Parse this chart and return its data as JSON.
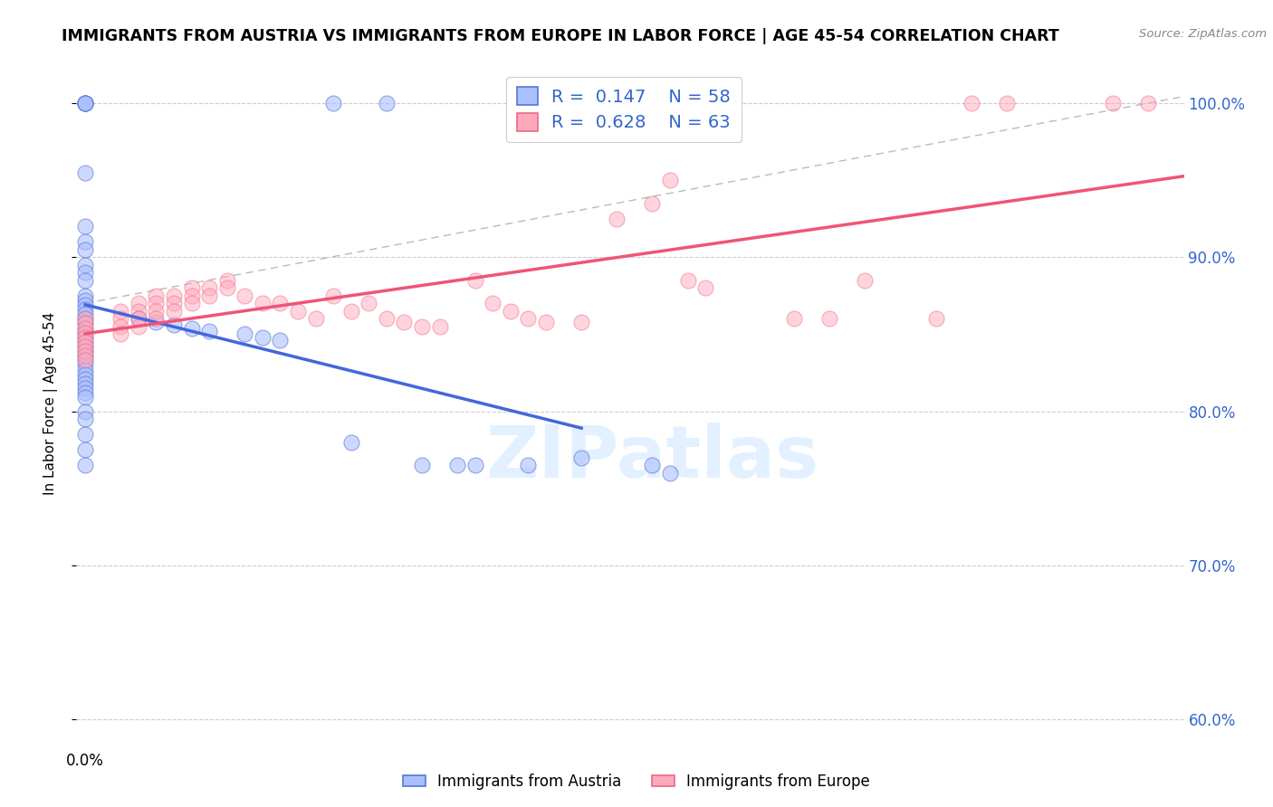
{
  "title": "IMMIGRANTS FROM AUSTRIA VS IMMIGRANTS FROM EUROPE IN LABOR FORCE | AGE 45-54 CORRELATION CHART",
  "source": "Source: ZipAtlas.com",
  "ylabel": "In Labor Force | Age 45-54",
  "xlim": [
    -0.0005,
    0.062
  ],
  "ylim": [
    0.585,
    1.025
  ],
  "yticks": [
    0.6,
    0.7,
    0.8,
    0.9,
    1.0
  ],
  "ytick_labels": [
    "60.0%",
    "70.0%",
    "80.0%",
    "90.0%",
    "100.0%"
  ],
  "xtick_positions": [
    0.0,
    0.01,
    0.02,
    0.03,
    0.04,
    0.05,
    0.06
  ],
  "blue_R": 0.147,
  "blue_N": 58,
  "pink_R": 0.628,
  "pink_N": 63,
  "blue_fill": "#aabfff",
  "blue_edge": "#5577cc",
  "pink_fill": "#ffaabb",
  "pink_edge": "#ee6688",
  "blue_line": "#4466dd",
  "pink_line": "#ee5577",
  "dash_color": "#bbbbbb",
  "text_blue": "#3366cc",
  "watermark_color": "#ddeeff",
  "blue_scatter_x": [
    0.0,
    0.0,
    0.0,
    0.0,
    0.0,
    0.0,
    0.0,
    0.0,
    0.0,
    0.0,
    0.0,
    0.0,
    0.0,
    0.0,
    0.0,
    0.0,
    0.0,
    0.0,
    0.0,
    0.0,
    0.0,
    0.0,
    0.0,
    0.0,
    0.0,
    0.0,
    0.0,
    0.0,
    0.0,
    0.0,
    0.0,
    0.0,
    0.0,
    0.0,
    0.0,
    0.0,
    0.0,
    0.0,
    0.0,
    0.0,
    0.003,
    0.004,
    0.005,
    0.006,
    0.007,
    0.009,
    0.01,
    0.011,
    0.014,
    0.015,
    0.017,
    0.019,
    0.021,
    0.022,
    0.025,
    0.028,
    0.032,
    0.033
  ],
  "blue_scatter_y": [
    1.0,
    1.0,
    1.0,
    1.0,
    1.0,
    0.955,
    0.92,
    0.91,
    0.905,
    0.895,
    0.89,
    0.885,
    0.875,
    0.872,
    0.869,
    0.866,
    0.863,
    0.86,
    0.857,
    0.854,
    0.851,
    0.848,
    0.845,
    0.842,
    0.839,
    0.836,
    0.833,
    0.83,
    0.827,
    0.824,
    0.821,
    0.818,
    0.815,
    0.812,
    0.809,
    0.8,
    0.795,
    0.785,
    0.775,
    0.765,
    0.86,
    0.858,
    0.856,
    0.854,
    0.852,
    0.85,
    0.848,
    0.846,
    1.0,
    0.78,
    1.0,
    0.765,
    0.765,
    0.765,
    0.765,
    0.77,
    0.765,
    0.76
  ],
  "pink_scatter_x": [
    0.0,
    0.0,
    0.0,
    0.0,
    0.0,
    0.0,
    0.0,
    0.0,
    0.0,
    0.0,
    0.002,
    0.002,
    0.002,
    0.002,
    0.003,
    0.003,
    0.003,
    0.003,
    0.004,
    0.004,
    0.004,
    0.004,
    0.005,
    0.005,
    0.005,
    0.006,
    0.006,
    0.006,
    0.007,
    0.007,
    0.008,
    0.008,
    0.009,
    0.01,
    0.011,
    0.012,
    0.013,
    0.014,
    0.015,
    0.016,
    0.017,
    0.018,
    0.019,
    0.02,
    0.022,
    0.023,
    0.024,
    0.025,
    0.026,
    0.028,
    0.03,
    0.032,
    0.033,
    0.034,
    0.035,
    0.04,
    0.042,
    0.044,
    0.048,
    0.05,
    0.052,
    0.058,
    0.06
  ],
  "pink_scatter_y": [
    0.86,
    0.857,
    0.854,
    0.851,
    0.848,
    0.845,
    0.842,
    0.839,
    0.836,
    0.833,
    0.865,
    0.86,
    0.855,
    0.85,
    0.87,
    0.865,
    0.86,
    0.855,
    0.875,
    0.87,
    0.865,
    0.86,
    0.875,
    0.87,
    0.865,
    0.88,
    0.875,
    0.87,
    0.88,
    0.875,
    0.885,
    0.88,
    0.875,
    0.87,
    0.87,
    0.865,
    0.86,
    0.875,
    0.865,
    0.87,
    0.86,
    0.858,
    0.855,
    0.855,
    0.885,
    0.87,
    0.865,
    0.86,
    0.858,
    0.858,
    0.925,
    0.935,
    0.95,
    0.885,
    0.88,
    0.86,
    0.86,
    0.885,
    0.86,
    1.0,
    1.0,
    1.0,
    1.0
  ]
}
